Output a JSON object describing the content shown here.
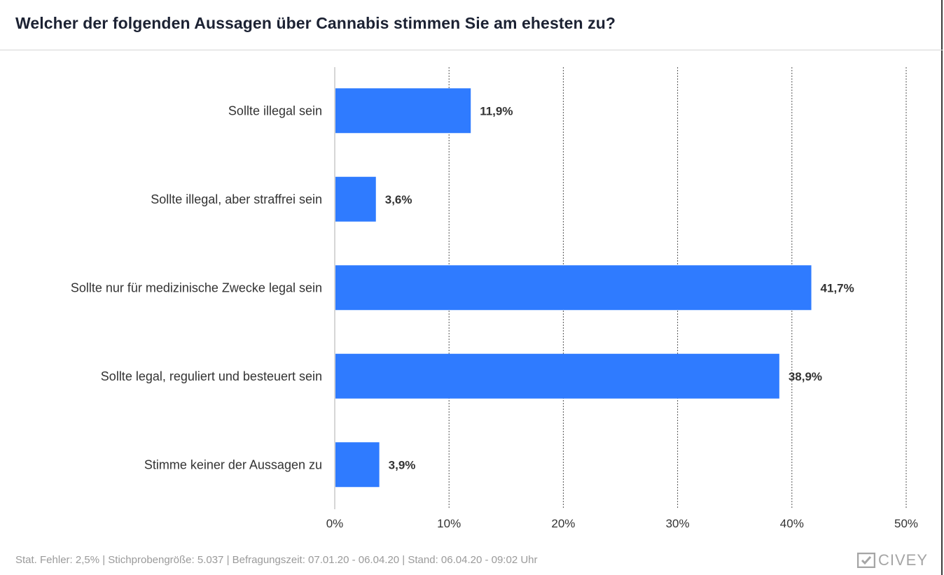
{
  "header": {
    "title": "Welcher der folgenden Aussagen über Cannabis stimmen Sie am ehesten zu?"
  },
  "chart_data": {
    "type": "bar",
    "orientation": "horizontal",
    "title": "Welcher der folgenden Aussagen über Cannabis stimmen Sie am ehesten zu?",
    "categories": [
      "Sollte illegal sein",
      "Sollte illegal, aber straffrei sein",
      "Sollte nur für medizinische Zwecke legal sein",
      "Sollte legal, reguliert und besteuert sein",
      "Stimme keiner der Aussagen zu"
    ],
    "values": [
      11.9,
      3.6,
      41.7,
      38.9,
      3.9
    ],
    "value_labels": [
      "11,9%",
      "3,6%",
      "41,7%",
      "38,9%",
      "3,9%"
    ],
    "xlim": [
      0,
      50
    ],
    "xticks": [
      0,
      10,
      20,
      30,
      40,
      50
    ],
    "xtick_labels": [
      "0%",
      "10%",
      "20%",
      "30%",
      "40%",
      "50%"
    ],
    "grid": true,
    "bar_color": "#2f7bff"
  },
  "footer": {
    "text": "Stat. Fehler: 2,5% | Stichprobengröße: 5.037 | Befragungszeit: 07.01.20 - 06.04.20 | Stand: 06.04.20 - 09:02 Uhr",
    "brand": "CIVEY",
    "brand_icon": "civey-logo-icon"
  }
}
